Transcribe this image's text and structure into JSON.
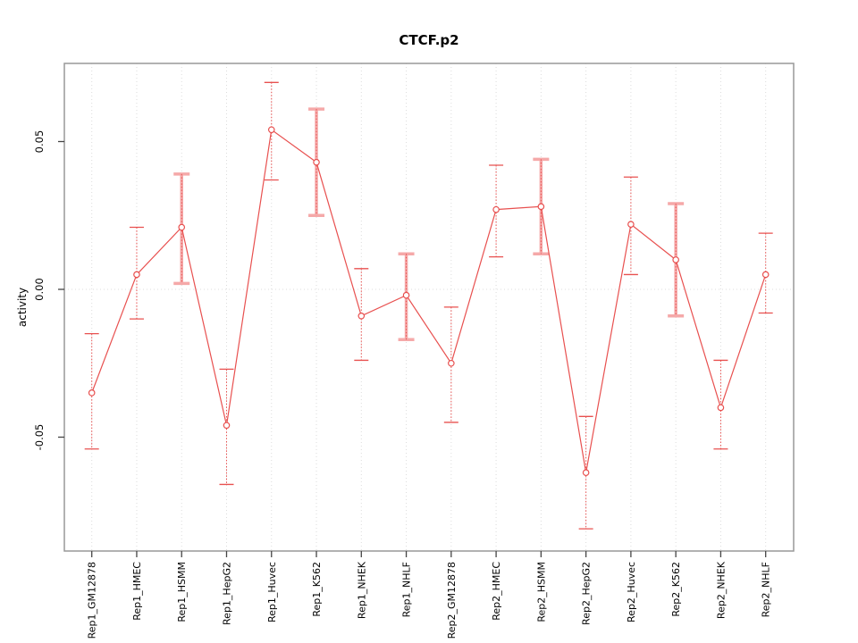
{
  "chart_data": {
    "type": "line",
    "title": "CTCF.p2",
    "ylabel": "activity",
    "xlabel": "",
    "legend": "none",
    "marker": "open-circle",
    "categories": [
      "Rep1_GM12878",
      "Rep1_HMEC",
      "Rep1_HSMM",
      "Rep1_HepG2",
      "Rep1_Huvec",
      "Rep1_K562",
      "Rep1_NHEK",
      "Rep1_NHLF",
      "Rep2_GM12878",
      "Rep2_HMEC",
      "Rep2_HSMM",
      "Rep2_HepG2",
      "Rep2_Huvec",
      "Rep2_K562",
      "Rep2_NHEK",
      "Rep2_NHLF"
    ],
    "series": [
      {
        "name": "activity",
        "values": [
          -0.035,
          0.005,
          0.021,
          -0.046,
          0.054,
          0.043,
          -0.009,
          -0.002,
          -0.025,
          0.027,
          0.028,
          -0.062,
          0.022,
          0.01,
          -0.04,
          0.005
        ],
        "error_high": [
          -0.015,
          0.021,
          0.039,
          -0.027,
          0.07,
          0.061,
          0.007,
          0.012,
          -0.006,
          0.042,
          0.044,
          -0.043,
          0.038,
          0.029,
          -0.024,
          0.019
        ],
        "error_low": [
          -0.054,
          -0.01,
          0.002,
          -0.066,
          0.037,
          0.025,
          -0.024,
          -0.017,
          -0.045,
          0.011,
          0.012,
          -0.081,
          0.005,
          -0.009,
          -0.054,
          -0.008
        ]
      }
    ],
    "wide_error_bar_indices": [
      2,
      5,
      7,
      10,
      13
    ],
    "y_ticks": [
      {
        "label": "-0.05",
        "value": -0.05
      },
      {
        "label": "0.00",
        "value": 0.0
      },
      {
        "label": "0.05",
        "value": 0.05
      }
    ],
    "ylim": [
      -0.0885,
      0.0765
    ],
    "grid": {
      "vertical_dotted_per_category": true,
      "horizontal_dotted_at_zero": true
    },
    "colors": {
      "line": "#e8504f",
      "wide_bar": "#f5a9a9",
      "grid": "#dcdcdc",
      "frame": "#999999",
      "tick": "#444444",
      "text": "#000000",
      "background": "#ffffff"
    }
  }
}
